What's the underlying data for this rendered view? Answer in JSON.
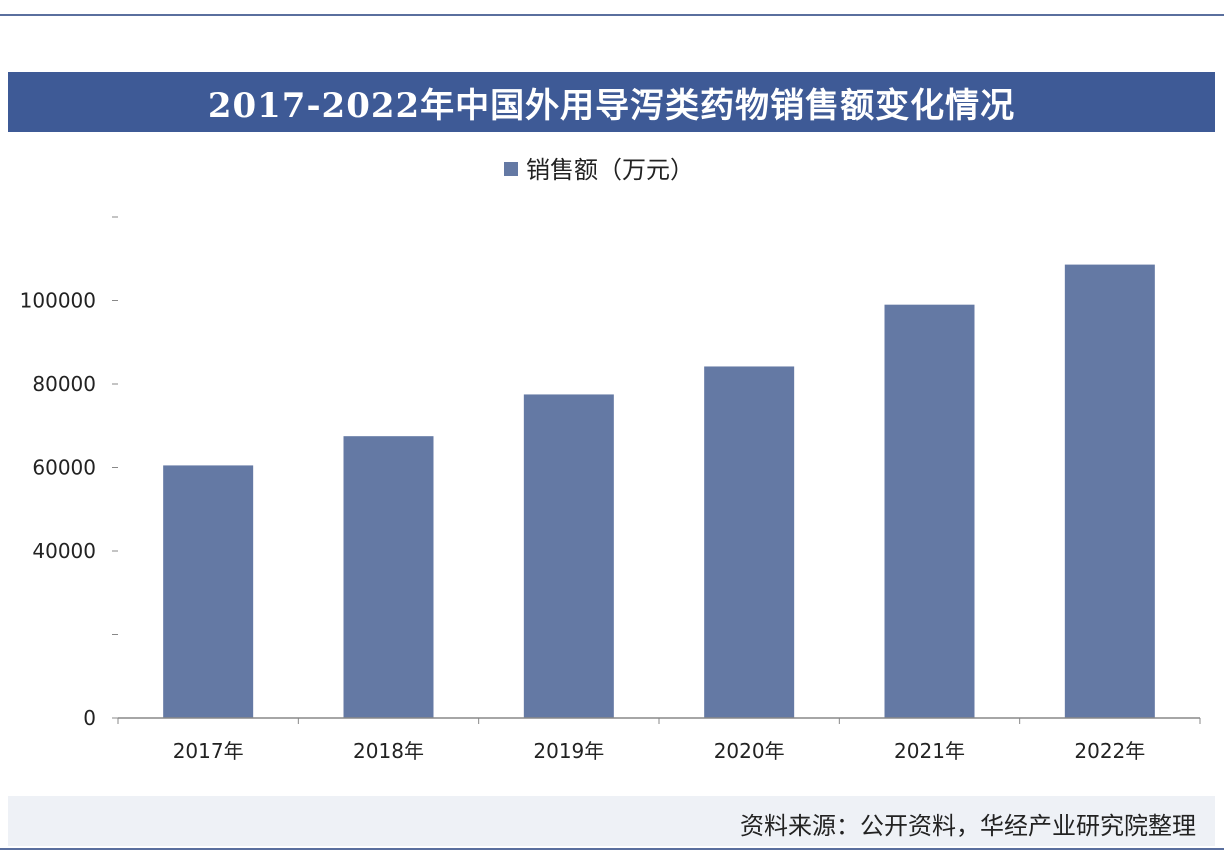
{
  "title": "2017-2022年中国外用导泻类药物销售额变化情况",
  "source": "资料来源：公开资料，华经产业研究院整理",
  "chart_data": {
    "type": "bar",
    "title": "2017-2022年中国外用导泻类药物销售额变化情况",
    "categories": [
      "2017年",
      "2018年",
      "2019年",
      "2020年",
      "2021年",
      "2022年"
    ],
    "series": [
      {
        "name": "销售额（万元）",
        "values": [
          60500,
          67500,
          77500,
          84200,
          99000,
          108600
        ]
      }
    ],
    "y_ticks": [
      0,
      20000,
      40000,
      60000,
      80000,
      100000,
      120000
    ],
    "y_tick_labels": [
      "0",
      "",
      "40000",
      "60000",
      "80000",
      "100000",
      ""
    ],
    "ylim": [
      0,
      120000
    ],
    "xlabel": "",
    "ylabel": "",
    "grid": false,
    "legend_position": "top-center",
    "bar_color": "#6479a4"
  }
}
